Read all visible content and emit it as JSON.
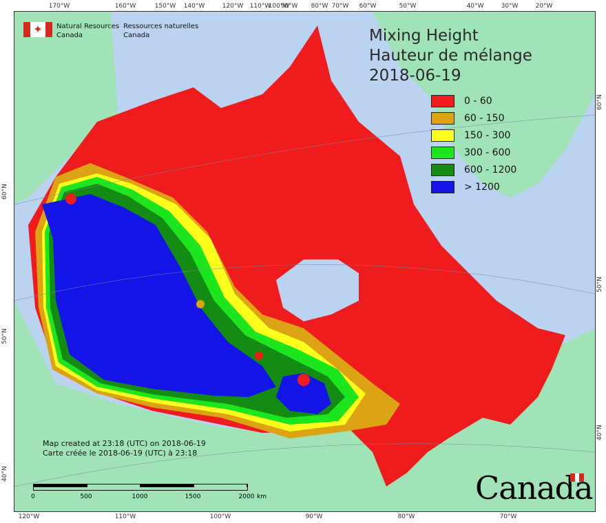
{
  "map": {
    "title_lines": [
      "Mixing Height",
      "Hauteur de mélange",
      "2018-06-19"
    ],
    "agency": {
      "en_line1": "Natural Resources",
      "en_line2": "Canada",
      "fr_line1": "Ressources naturelles",
      "fr_line2": "Canada"
    },
    "legend": [
      {
        "label": "0 - 60",
        "color": "#ee1c1c"
      },
      {
        "label": "60 - 150",
        "color": "#dca414"
      },
      {
        "label": "150 - 300",
        "color": "#ffff1e"
      },
      {
        "label": "300 - 600",
        "color": "#1ee61e"
      },
      {
        "label": "600 - 1200",
        "color": "#148c14"
      },
      {
        "label": "> 1200",
        "color": "#1414e6"
      }
    ],
    "credit_en": "Map created at 23:18 (UTC) on 2018-06-19",
    "credit_fr": "Carte créée le 2018-06-19 (UTC) à 23:18",
    "scale_labels": [
      "0",
      "500",
      "1000",
      "1500",
      "2000",
      "km"
    ],
    "wordmark": "Canada",
    "top_ticks": [
      "170°W",
      "160°W",
      "150°W",
      "140°W",
      "120°W",
      "110°W",
      "100°W",
      "90°W",
      "80°W",
      "70°W",
      "60°W",
      "50°W",
      "40°W",
      "30°W",
      "20°W"
    ],
    "bottom_ticks": [
      "120°W",
      "110°W",
      "100°W",
      "90°W",
      "80°W",
      "70°W"
    ],
    "left_ticks": [
      "60°N",
      "50°N",
      "40°N"
    ],
    "right_ticks": [
      "60°N",
      "50°N",
      "40°N"
    ],
    "colors": {
      "ocean": "#b9d3f0",
      "land_foreign": "#9fe3b6"
    }
  }
}
